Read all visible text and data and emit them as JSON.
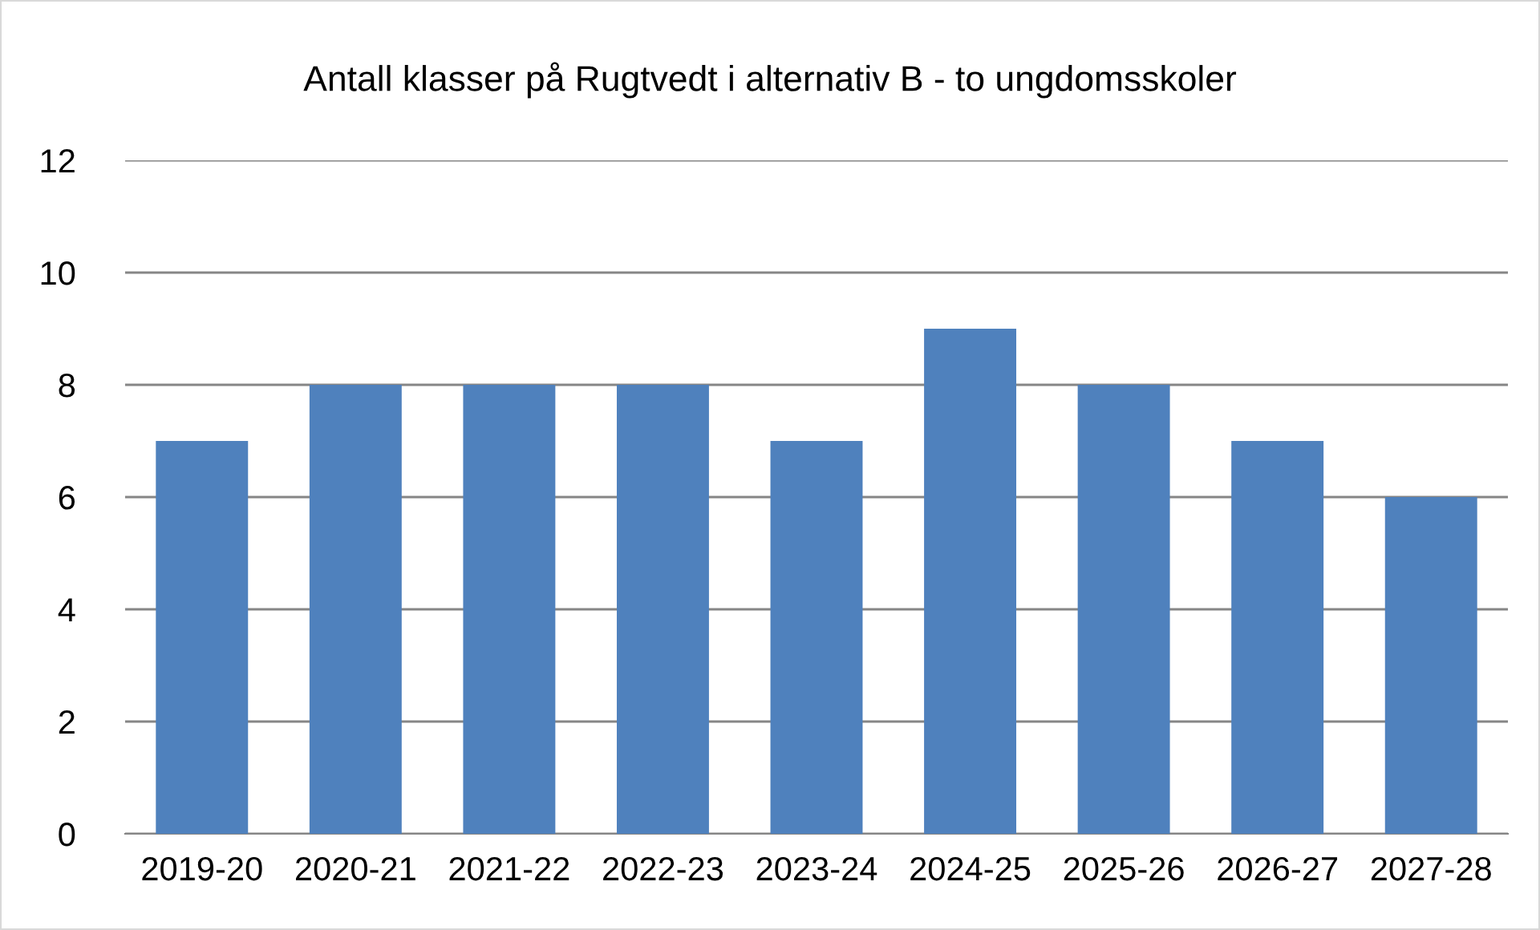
{
  "chart_data": {
    "type": "bar",
    "title": "Antall klasser på Rugtvedt i alternativ B - to ungdomsskoler",
    "categories": [
      "2019-20",
      "2020-21",
      "2021-22",
      "2022-23",
      "2023-24",
      "2024-25",
      "2025-26",
      "2026-27",
      "2027-28"
    ],
    "values": [
      7,
      8,
      8,
      8,
      7,
      9,
      8,
      7,
      6
    ],
    "color": "#4f81bd",
    "ylim": [
      0,
      12
    ],
    "yticks": [
      0,
      2,
      4,
      6,
      8,
      10,
      12
    ],
    "grid": "y",
    "legend": false
  }
}
